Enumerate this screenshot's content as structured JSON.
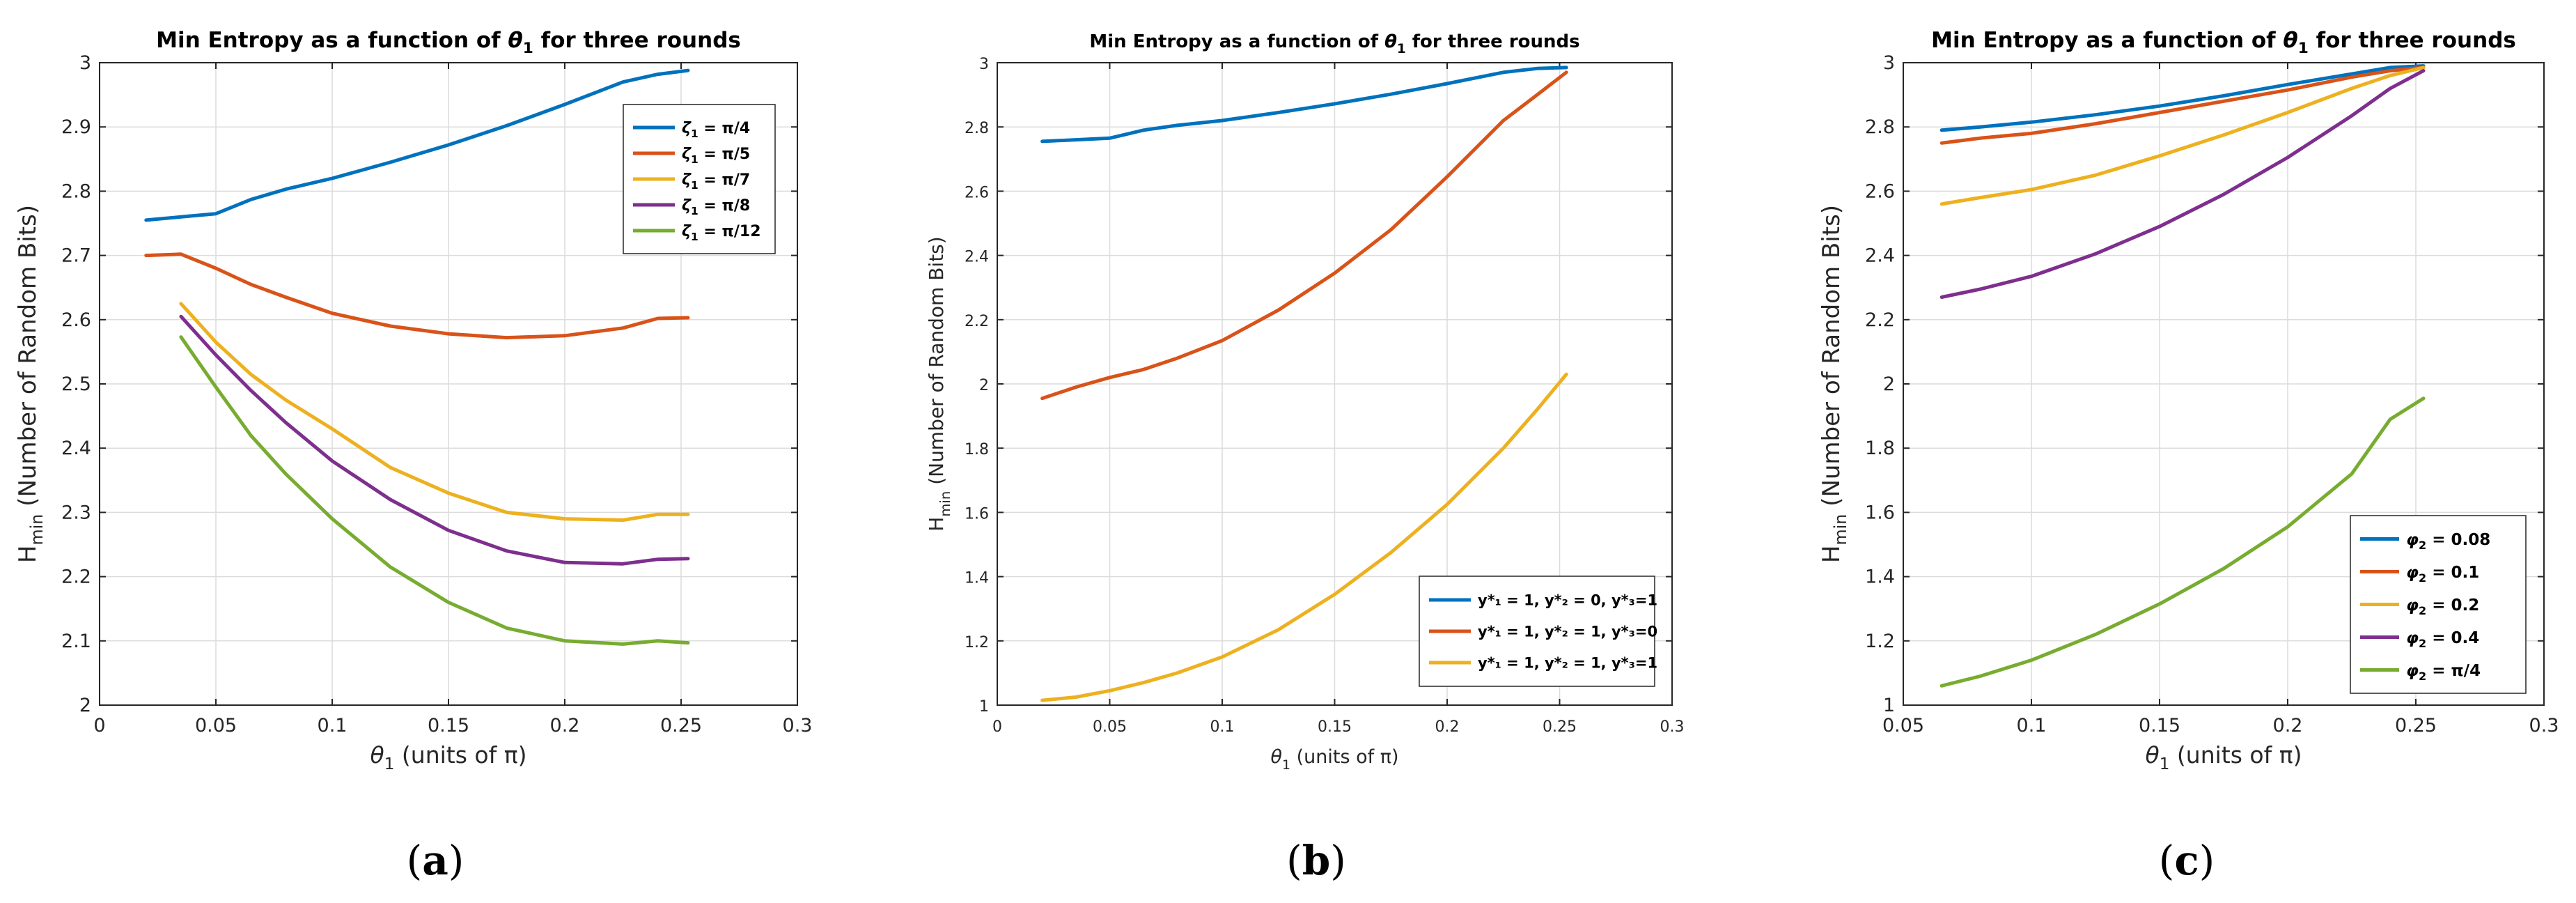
{
  "chart_data": [
    {
      "type": "line",
      "panel_label": "(a)",
      "title_prefix": "Min Entropy as a function of ",
      "title_symbol": "θ",
      "title_sub": "1",
      "title_suffix": " for three rounds",
      "xlabel_symbol": "θ",
      "xlabel_sub": "1",
      "xlabel_suffix": " (units of π)",
      "ylabel_main": "H",
      "ylabel_sub": "min",
      "ylabel_suffix": " (Number of Random Bits)",
      "xlim": [
        0,
        0.3
      ],
      "ylim": [
        2,
        3
      ],
      "xticks": [
        0,
        0.05,
        0.1,
        0.15,
        0.2,
        0.25,
        0.3
      ],
      "xtick_labels": [
        "0",
        "0.05",
        "0.1",
        "0.15",
        "0.2",
        "0.25",
        "0.3"
      ],
      "yticks": [
        2,
        2.1,
        2.2,
        2.3,
        2.4,
        2.5,
        2.6,
        2.7,
        2.8,
        2.9,
        3
      ],
      "ytick_labels": [
        "2",
        "2.1",
        "2.2",
        "2.3",
        "2.4",
        "2.5",
        "2.6",
        "2.7",
        "2.8",
        "2.9",
        "3"
      ],
      "grid": true,
      "legend_position": "top-right",
      "series": [
        {
          "name": "ζ1 = π/4",
          "legend_symbol": "ζ",
          "legend_sub": "1",
          "legend_text": " = π/4",
          "color": "#0072BD",
          "x": [
            0.02,
            0.035,
            0.05,
            0.065,
            0.08,
            0.1,
            0.125,
            0.15,
            0.175,
            0.2,
            0.225,
            0.24,
            0.253
          ],
          "y": [
            2.755,
            2.76,
            2.765,
            2.787,
            2.803,
            2.82,
            2.845,
            2.872,
            2.902,
            2.935,
            2.97,
            2.982,
            2.988
          ]
        },
        {
          "name": "ζ1 = π/5",
          "legend_symbol": "ζ",
          "legend_sub": "1",
          "legend_text": " = π/5",
          "color": "#D95319",
          "x": [
            0.02,
            0.035,
            0.05,
            0.065,
            0.08,
            0.1,
            0.125,
            0.15,
            0.175,
            0.2,
            0.225,
            0.24,
            0.253
          ],
          "y": [
            2.7,
            2.702,
            2.68,
            2.655,
            2.635,
            2.61,
            2.59,
            2.578,
            2.572,
            2.575,
            2.587,
            2.602,
            2.603
          ]
        },
        {
          "name": "ζ1 = π/7",
          "legend_symbol": "ζ",
          "legend_sub": "1",
          "legend_text": " = π/7",
          "color": "#EDB120",
          "x": [
            0.035,
            0.05,
            0.065,
            0.08,
            0.1,
            0.125,
            0.15,
            0.175,
            0.2,
            0.225,
            0.24,
            0.253
          ],
          "y": [
            2.625,
            2.565,
            2.515,
            2.475,
            2.43,
            2.37,
            2.33,
            2.3,
            2.29,
            2.288,
            2.297,
            2.297
          ]
        },
        {
          "name": "ζ1 = π/8",
          "legend_symbol": "ζ",
          "legend_sub": "1",
          "legend_text": " = π/8",
          "color": "#7E2F8E",
          "x": [
            0.035,
            0.05,
            0.065,
            0.08,
            0.1,
            0.125,
            0.15,
            0.175,
            0.2,
            0.225,
            0.24,
            0.253
          ],
          "y": [
            2.605,
            2.545,
            2.49,
            2.44,
            2.38,
            2.32,
            2.272,
            2.24,
            2.222,
            2.22,
            2.227,
            2.228
          ]
        },
        {
          "name": "ζ1 = π/12",
          "legend_symbol": "ζ",
          "legend_sub": "1",
          "legend_text": " = π/12",
          "color": "#77AC30",
          "x": [
            0.035,
            0.05,
            0.065,
            0.08,
            0.1,
            0.125,
            0.15,
            0.175,
            0.2,
            0.225,
            0.24,
            0.253
          ],
          "y": [
            2.573,
            2.495,
            2.42,
            2.36,
            2.29,
            2.215,
            2.16,
            2.12,
            2.1,
            2.095,
            2.1,
            2.097
          ]
        }
      ]
    },
    {
      "type": "line",
      "panel_label": "(b)",
      "title_prefix": "Min Entropy as a function of ",
      "title_symbol": "θ",
      "title_sub": "1",
      "title_suffix": " for three rounds",
      "xlabel_symbol": "θ",
      "xlabel_sub": "1",
      "xlabel_suffix": " (units of π)",
      "ylabel_main": "H",
      "ylabel_sub": "min",
      "ylabel_suffix": " (Number of Random Bits)",
      "xlim": [
        0,
        0.3
      ],
      "ylim": [
        1,
        3
      ],
      "xticks": [
        0,
        0.05,
        0.1,
        0.15,
        0.2,
        0.25,
        0.3
      ],
      "xtick_labels": [
        "0",
        "0.05",
        "0.1",
        "0.15",
        "0.2",
        "0.25",
        "0.3"
      ],
      "yticks": [
        1,
        1.2,
        1.4,
        1.6,
        1.8,
        2,
        2.2,
        2.4,
        2.6,
        2.8,
        3
      ],
      "ytick_labels": [
        "1",
        "1.2",
        "1.4",
        "1.6",
        "1.8",
        "2",
        "2.2",
        "2.4",
        "2.6",
        "2.8",
        "3"
      ],
      "grid": true,
      "legend_position": "bottom-right",
      "series": [
        {
          "name": "y*1 = 1, y*2 = 0, y*3=1",
          "legend_text": "y*₁ = 1, y*₂ = 0, y*₃=1",
          "color": "#0072BD",
          "x": [
            0.02,
            0.035,
            0.05,
            0.065,
            0.08,
            0.1,
            0.125,
            0.15,
            0.175,
            0.2,
            0.225,
            0.24,
            0.253
          ],
          "y": [
            2.755,
            2.76,
            2.765,
            2.79,
            2.805,
            2.82,
            2.845,
            2.872,
            2.902,
            2.935,
            2.97,
            2.982,
            2.985
          ]
        },
        {
          "name": "y*1 = 1, y*2 = 1, y*3=0",
          "legend_text": "y*₁ = 1, y*₂ = 1, y*₃=0",
          "color": "#D95319",
          "x": [
            0.02,
            0.035,
            0.05,
            0.065,
            0.08,
            0.1,
            0.125,
            0.15,
            0.175,
            0.2,
            0.225,
            0.24,
            0.253
          ],
          "y": [
            1.955,
            1.99,
            2.02,
            2.045,
            2.08,
            2.135,
            2.23,
            2.345,
            2.48,
            2.645,
            2.82,
            2.9,
            2.97
          ]
        },
        {
          "name": "y*1 = 1, y*2 = 1, y*3=1",
          "legend_text": "y*₁ = 1, y*₂ = 1, y*₃=1",
          "color": "#EDB120",
          "x": [
            0.02,
            0.035,
            0.05,
            0.065,
            0.08,
            0.1,
            0.125,
            0.15,
            0.175,
            0.2,
            0.225,
            0.24,
            0.253
          ],
          "y": [
            1.015,
            1.025,
            1.045,
            1.07,
            1.1,
            1.15,
            1.235,
            1.345,
            1.475,
            1.625,
            1.8,
            1.92,
            2.03
          ]
        }
      ]
    },
    {
      "type": "line",
      "panel_label": "(c)",
      "title_prefix": "Min Entropy as a function of ",
      "title_symbol": "θ",
      "title_sub": "1",
      "title_suffix": " for three rounds",
      "xlabel_symbol": "θ",
      "xlabel_sub": "1",
      "xlabel_suffix": " (units of π)",
      "ylabel_main": "H",
      "ylabel_sub": "min",
      "ylabel_suffix": " (Number of Random Bits)",
      "xlim": [
        0.05,
        0.3
      ],
      "ylim": [
        1,
        3
      ],
      "xticks": [
        0.05,
        0.1,
        0.15,
        0.2,
        0.25,
        0.3
      ],
      "xtick_labels": [
        "0.05",
        "0.1",
        "0.15",
        "0.2",
        "0.25",
        "0.3"
      ],
      "yticks": [
        1,
        1.2,
        1.4,
        1.6,
        1.8,
        2,
        2.2,
        2.4,
        2.6,
        2.8,
        3
      ],
      "ytick_labels": [
        "1",
        "1.2",
        "1.4",
        "1.6",
        "1.8",
        "2",
        "2.2",
        "2.4",
        "2.6",
        "2.8",
        "3"
      ],
      "grid": true,
      "legend_position": "bottom-right",
      "series": [
        {
          "name": "φ2 = 0.08",
          "legend_symbol": "φ",
          "legend_sub": "2",
          "legend_text": " = 0.08",
          "color": "#0072BD",
          "x": [
            0.065,
            0.08,
            0.1,
            0.125,
            0.15,
            0.175,
            0.2,
            0.225,
            0.24,
            0.253
          ],
          "y": [
            2.79,
            2.8,
            2.815,
            2.838,
            2.865,
            2.897,
            2.932,
            2.965,
            2.985,
            2.99
          ]
        },
        {
          "name": "φ2 = 0.1",
          "legend_symbol": "φ",
          "legend_sub": "2",
          "legend_text": " = 0.1",
          "color": "#D95319",
          "x": [
            0.065,
            0.08,
            0.1,
            0.125,
            0.15,
            0.175,
            0.2,
            0.225,
            0.24,
            0.253
          ],
          "y": [
            2.75,
            2.765,
            2.78,
            2.81,
            2.845,
            2.88,
            2.915,
            2.955,
            2.975,
            2.985
          ]
        },
        {
          "name": "φ2 = 0.2",
          "legend_symbol": "φ",
          "legend_sub": "2",
          "legend_text": " = 0.2",
          "color": "#EDB120",
          "x": [
            0.065,
            0.08,
            0.1,
            0.125,
            0.15,
            0.175,
            0.2,
            0.225,
            0.24,
            0.253
          ],
          "y": [
            2.56,
            2.58,
            2.605,
            2.65,
            2.71,
            2.775,
            2.845,
            2.92,
            2.96,
            2.985
          ]
        },
        {
          "name": "φ2 = 0.4",
          "legend_symbol": "φ",
          "legend_sub": "2",
          "legend_text": " = 0.4",
          "color": "#7E2F8E",
          "x": [
            0.065,
            0.08,
            0.1,
            0.125,
            0.15,
            0.175,
            0.2,
            0.225,
            0.24,
            0.253
          ],
          "y": [
            2.27,
            2.295,
            2.335,
            2.405,
            2.49,
            2.59,
            2.705,
            2.835,
            2.92,
            2.975
          ]
        },
        {
          "name": "φ2 = π/4",
          "legend_symbol": "φ",
          "legend_sub": "2",
          "legend_text": " = π/4",
          "color": "#77AC30",
          "x": [
            0.065,
            0.08,
            0.1,
            0.125,
            0.15,
            0.175,
            0.2,
            0.225,
            0.24,
            0.253
          ],
          "y": [
            1.06,
            1.09,
            1.14,
            1.22,
            1.315,
            1.425,
            1.555,
            1.72,
            1.89,
            1.955
          ]
        }
      ]
    }
  ]
}
